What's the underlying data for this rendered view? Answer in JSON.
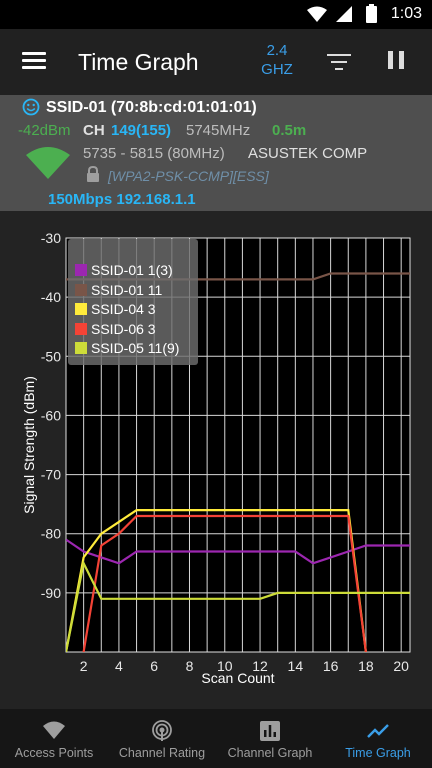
{
  "status": {
    "time": "1:03"
  },
  "appbar": {
    "title": "Time Graph",
    "band_top": "2.4",
    "band_bottom": "GHZ"
  },
  "info": {
    "ssid_line": "SSID-01 (70:8b:cd:01:01:01)",
    "dbm": "-42dBm",
    "ch_label": "CH",
    "channel": "149(155)",
    "freq": "5745MHz",
    "distance": "0.5m",
    "range": "5735 - 5815 (80MHz)",
    "vendor": "ASUSTEK COMP",
    "security": "[WPA2-PSK-CCMP][ESS]",
    "rate_ip": "150Mbps 192.168.1.1"
  },
  "chart_data": {
    "type": "line",
    "xlabel": "Scan Count",
    "ylabel": "Signal Strength (dBm)",
    "xlim": [
      1,
      20.5
    ],
    "ylim": [
      -100,
      -30
    ],
    "xticks": [
      2,
      4,
      6,
      8,
      10,
      12,
      14,
      16,
      18,
      20
    ],
    "yticks": [
      -30,
      -40,
      -50,
      -60,
      -70,
      -80,
      -90
    ],
    "grid": true,
    "legend_position": "top-left",
    "series": [
      {
        "name": "SSID-01 1(3)",
        "color": "#9c27b0",
        "points": [
          [
            1,
            -81
          ],
          [
            2,
            -83
          ],
          [
            3,
            -84
          ],
          [
            4,
            -85
          ],
          [
            5,
            -83
          ],
          [
            6,
            -83
          ],
          [
            7,
            -83
          ],
          [
            8,
            -83
          ],
          [
            9,
            -83
          ],
          [
            10,
            -83
          ],
          [
            11,
            -83
          ],
          [
            12,
            -83
          ],
          [
            13,
            -83
          ],
          [
            14,
            -83
          ],
          [
            15,
            -85
          ],
          [
            16,
            -84
          ],
          [
            17,
            -83
          ],
          [
            18,
            -82
          ],
          [
            19,
            -82
          ],
          [
            20,
            -82
          ],
          [
            20.5,
            -82
          ]
        ]
      },
      {
        "name": "SSID-01 11",
        "color": "#795548",
        "points": [
          [
            1,
            -37
          ],
          [
            14,
            -37
          ],
          [
            15,
            -37
          ],
          [
            16,
            -36
          ],
          [
            17,
            -36
          ],
          [
            20.5,
            -36
          ]
        ]
      },
      {
        "name": "SSID-04 3",
        "color": "#ffeb3b",
        "points": [
          [
            1,
            -100
          ],
          [
            2,
            -84
          ],
          [
            3,
            -80
          ],
          [
            4,
            -78
          ],
          [
            5,
            -76
          ],
          [
            17,
            -76
          ],
          [
            18,
            -100
          ]
        ]
      },
      {
        "name": "SSID-06 3",
        "color": "#f44336",
        "points": [
          [
            2,
            -100
          ],
          [
            3,
            -82
          ],
          [
            4,
            -80
          ],
          [
            5,
            -77
          ],
          [
            17,
            -77
          ],
          [
            18,
            -100
          ]
        ]
      },
      {
        "name": "SSID-05 11(9)",
        "color": "#cddc39",
        "points": [
          [
            1,
            -100
          ],
          [
            2,
            -85
          ],
          [
            3,
            -91
          ],
          [
            12,
            -91
          ],
          [
            13,
            -90
          ],
          [
            20.5,
            -90
          ]
        ]
      }
    ]
  },
  "nav": {
    "items": [
      {
        "label": "Access Points",
        "active": false
      },
      {
        "label": "Channel Rating",
        "active": false
      },
      {
        "label": "Channel Graph",
        "active": false
      },
      {
        "label": "Time Graph",
        "active": true
      }
    ]
  },
  "colors": {
    "accent": "#3a9ee8",
    "dbm": "#4caf50",
    "channel": "#29b6f6",
    "wifi": "#4caf50"
  }
}
